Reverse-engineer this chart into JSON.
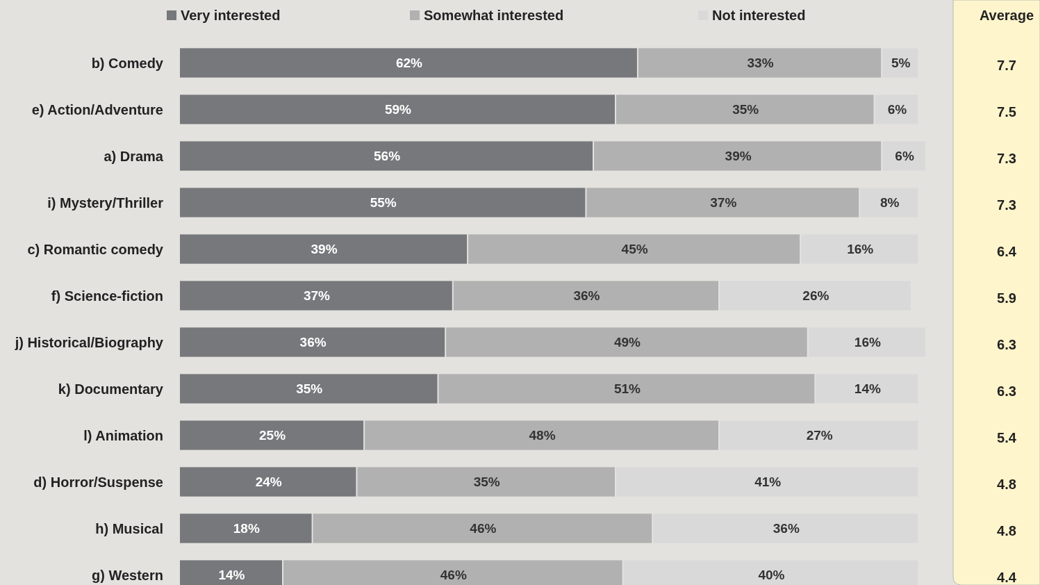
{
  "chart_data": [
    {
      "type": "bar",
      "orientation": "horizontal",
      "stacked": true,
      "legend": "top",
      "tick_labels": false,
      "categories": [
        "b) Comedy",
        "e) Action/Adventure",
        "a) Drama",
        "i) Mystery/Thriller",
        "c) Romantic comedy",
        "f) Science-fiction",
        "j) Historical/Biography",
        "k) Documentary",
        "l) Animation",
        "d) Horror/Suspense",
        "h) Musical",
        "g) Western"
      ],
      "series": [
        {
          "name": "Very interested",
          "color": "#76787b",
          "values": [
            62,
            59,
            56,
            55,
            39,
            37,
            36,
            35,
            25,
            24,
            18,
            14
          ],
          "value_labels": [
            "62%",
            "59%",
            "56%",
            "55%",
            "39%",
            "37%",
            "36%",
            "35%",
            "25%",
            "24%",
            "18%",
            "14%"
          ]
        },
        {
          "name": "Somewhat interested",
          "color": "#b1b1b1",
          "values": [
            33,
            35,
            39,
            37,
            45,
            36,
            49,
            51,
            48,
            35,
            46,
            46
          ],
          "value_labels": [
            "33%",
            "35%",
            "39%",
            "37%",
            "45%",
            "36%",
            "49%",
            "51%",
            "48%",
            "35%",
            "46%",
            "46%"
          ]
        },
        {
          "name": "Not interested",
          "color": "#d9d9d9",
          "values": [
            5,
            6,
            6,
            8,
            16,
            26,
            16,
            14,
            27,
            41,
            36,
            40
          ],
          "value_labels": [
            "5%",
            "6%",
            "6%",
            "8%",
            "16%",
            "26%",
            "16%",
            "14%",
            "27%",
            "41%",
            "36%",
            "40%"
          ]
        }
      ]
    },
    {
      "type": "other",
      "title": "Average",
      "annotations": [
        "7.7",
        "7.5",
        "7.3",
        "7.3",
        "6.4",
        "5.9",
        "6.3",
        "6.3",
        "5.4",
        "4.8",
        "4.8",
        "4.4"
      ]
    }
  ]
}
